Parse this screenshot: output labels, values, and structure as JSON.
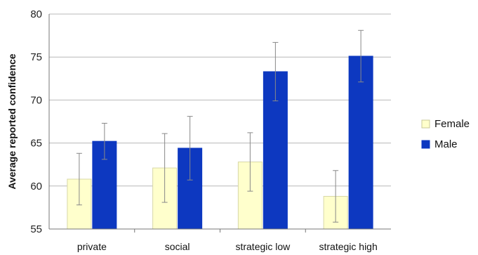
{
  "chart_data": {
    "type": "bar",
    "categories": [
      "private",
      "social",
      "strategic low",
      "strategic high"
    ],
    "series": [
      {
        "name": "Female",
        "values": [
          60.8,
          62.1,
          62.8,
          58.8
        ],
        "error": [
          3.0,
          4.0,
          3.4,
          3.0
        ],
        "color": "#ffffcc"
      },
      {
        "name": "Male",
        "values": [
          65.2,
          64.4,
          73.3,
          75.1
        ],
        "error": [
          2.1,
          3.7,
          3.4,
          3.0
        ],
        "color": "#0d38c0"
      }
    ],
    "title": "",
    "xlabel": "",
    "ylabel": "Average reported confidence",
    "ylim": [
      55,
      80
    ],
    "yticks": [
      55,
      60,
      65,
      70,
      75,
      80
    ],
    "grid": true,
    "legend_position": "right"
  }
}
